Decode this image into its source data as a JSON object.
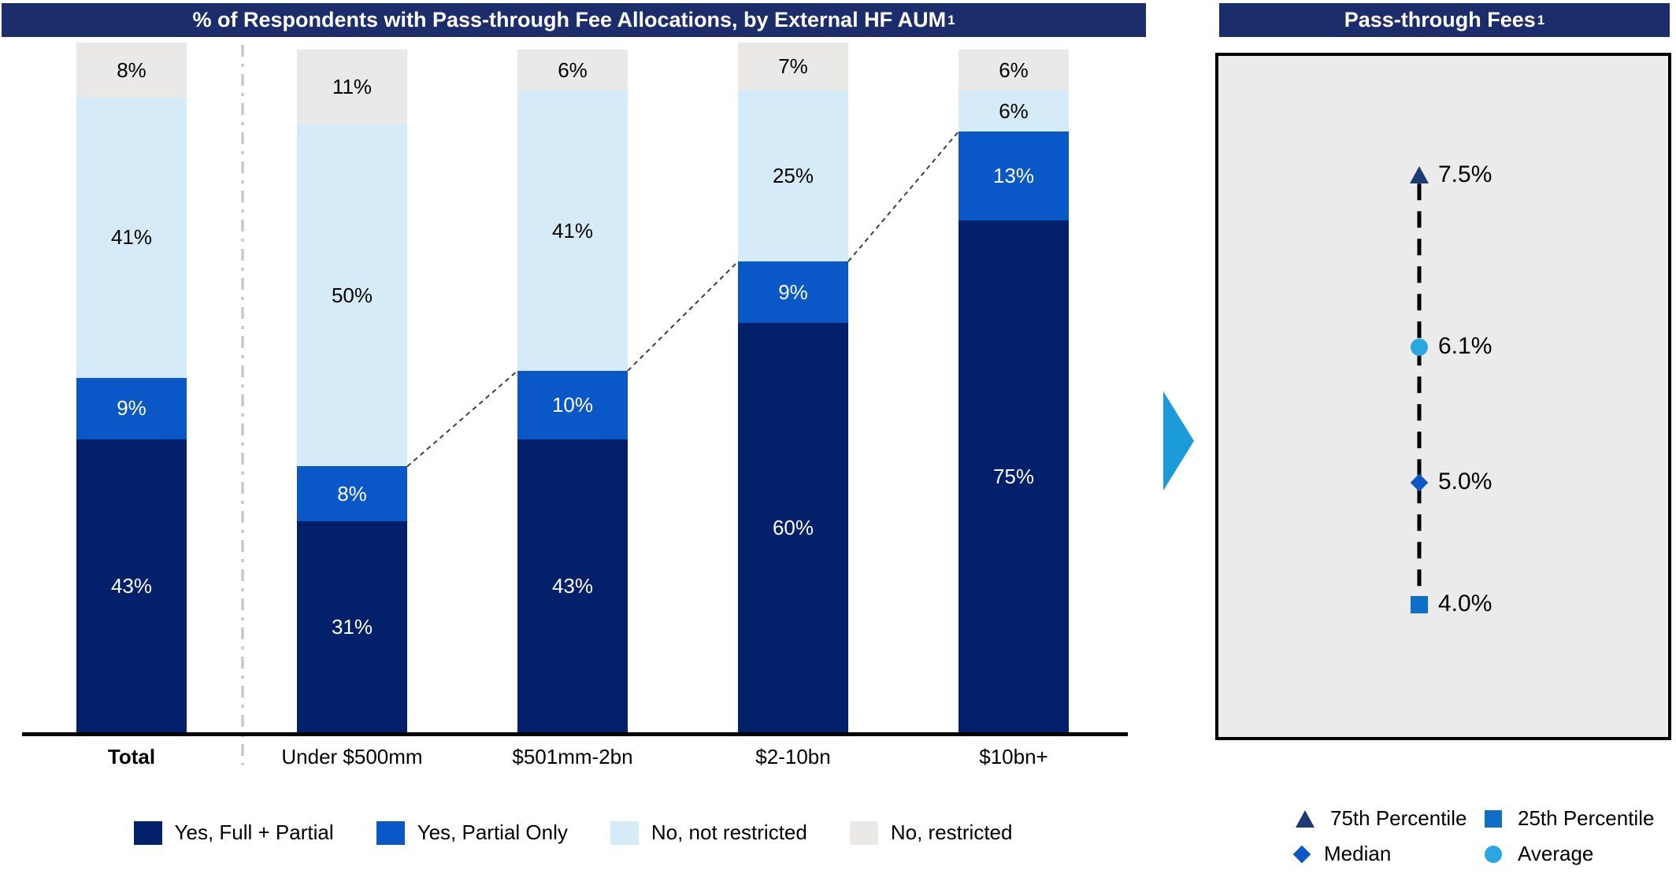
{
  "left_panel": {
    "title": "% of Respondents with Pass-through Fee Allocations, by External HF AUM",
    "title_sup": "1"
  },
  "right_panel": {
    "title": "Pass-through Fees",
    "title_sup": "1"
  },
  "colors": {
    "title_bar": "#1b2d6b",
    "axis": "#000000",
    "separator": "#c8c8c8",
    "connector": "#404040",
    "flow_arrow": "#1b9cd8",
    "panel_bg": "#ebebeb",
    "panel_border": "#000000"
  },
  "chart_data": [
    {
      "type": "bar",
      "stacked": true,
      "title": "% of Respondents with Pass-through Fee Allocations, by External HF AUM¹",
      "categories": [
        {
          "label": "Total",
          "bold": true
        },
        {
          "label": "Under $500mm",
          "bold": false
        },
        {
          "label": "$501mm-2bn",
          "bold": false
        },
        {
          "label": "$2-10bn",
          "bold": false
        },
        {
          "label": "$10bn+",
          "bold": false
        }
      ],
      "series": [
        {
          "name": "Yes, Full + Partial",
          "color": "#03216b",
          "label_color": "#ffffff",
          "values": [
            43,
            31,
            43,
            60,
            75
          ]
        },
        {
          "name": "Yes, Partial Only",
          "color": "#0a58c8",
          "label_color": "#ffffff",
          "values": [
            9,
            8,
            10,
            9,
            13
          ]
        },
        {
          "name": "No, not restricted",
          "color": "#d6ebf8",
          "label_color": "#000000",
          "values": [
            41,
            50,
            41,
            25,
            6
          ]
        },
        {
          "name": "No, restricted",
          "color": "#ebe9e7",
          "label_color": "#000000",
          "values": [
            8,
            11,
            6,
            7,
            6
          ]
        }
      ],
      "value_suffix": "%",
      "ylim": [
        0,
        100
      ],
      "gridlines": false,
      "legend_position": "bottom"
    },
    {
      "type": "scatter",
      "title": "Pass-through Fees¹",
      "points": [
        {
          "name": "75th Percentile",
          "value": 7.5,
          "label": "7.5%",
          "marker": "triangle-up",
          "color": "#1c3a74"
        },
        {
          "name": "Average",
          "value": 6.1,
          "label": "6.1%",
          "marker": "circle",
          "color": "#2aa7e0"
        },
        {
          "name": "Median",
          "value": 5.0,
          "label": "5.0%",
          "marker": "diamond",
          "color": "#0d57c6"
        },
        {
          "name": "25th Percentile",
          "value": 4.0,
          "label": "4.0%",
          "marker": "square",
          "color": "#0e6fca"
        }
      ],
      "legend": [
        {
          "label": "75th Percentile",
          "marker": "triangle-up",
          "color": "#1c3a74"
        },
        {
          "label": "25th Percentile",
          "marker": "square",
          "color": "#0e6fca"
        },
        {
          "label": "Median",
          "marker": "diamond",
          "color": "#0d57c6"
        },
        {
          "label": "Average",
          "marker": "circle",
          "color": "#2aa7e0"
        }
      ]
    }
  ]
}
